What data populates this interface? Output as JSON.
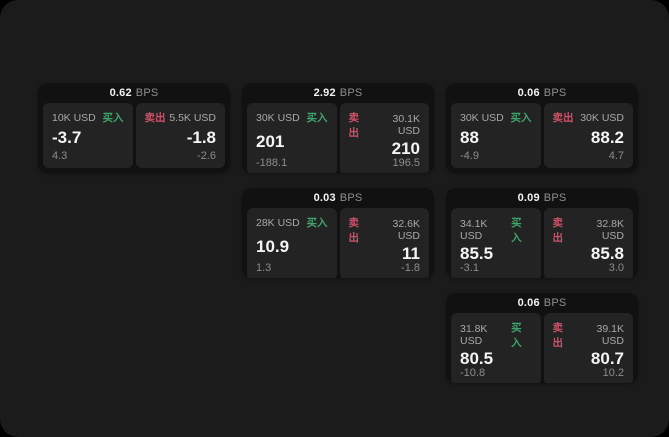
{
  "labels": {
    "bps_unit": "BPS",
    "buy": "买入",
    "sell": "卖出"
  },
  "colors": {
    "surface": "#1b1b1b",
    "card": "#111111",
    "panel": "#232323",
    "buy_green": "#3ea56c",
    "sell_red": "#cd5168"
  },
  "cards": [
    {
      "col": 1,
      "row": 1,
      "bps": "0.62",
      "buy": {
        "size": "10K USD",
        "price": "-3.7",
        "sub": "4.3"
      },
      "sell": {
        "size": "5.5K USD",
        "price": "-1.8",
        "sub": "-2.6"
      }
    },
    {
      "col": 2,
      "row": 1,
      "bps": "2.92",
      "buy": {
        "size": "30K USD",
        "price": "201",
        "sub": "-188.1"
      },
      "sell": {
        "size": "30.1K USD",
        "price": "210",
        "sub": "196.5"
      }
    },
    {
      "col": 3,
      "row": 1,
      "bps": "0.06",
      "buy": {
        "size": "30K USD",
        "price": "88",
        "sub": "-4.9"
      },
      "sell": {
        "size": "30K USD",
        "price": "88.2",
        "sub": "4.7"
      }
    },
    {
      "col": 2,
      "row": 2,
      "bps": "0.03",
      "buy": {
        "size": "28K USD",
        "price": "10.9",
        "sub": "1.3"
      },
      "sell": {
        "size": "32.6K USD",
        "price": "11",
        "sub": "-1.8"
      }
    },
    {
      "col": 3,
      "row": 2,
      "bps": "0.09",
      "buy": {
        "size": "34.1K USD",
        "price": "85.5",
        "sub": "-3.1"
      },
      "sell": {
        "size": "32.8K USD",
        "price": "85.8",
        "sub": "3.0"
      }
    },
    {
      "col": 3,
      "row": 3,
      "bps": "0.06",
      "buy": {
        "size": "31.8K USD",
        "price": "80.5",
        "sub": "-10.8"
      },
      "sell": {
        "size": "39.1K USD",
        "price": "80.7",
        "sub": "10.2"
      }
    }
  ]
}
